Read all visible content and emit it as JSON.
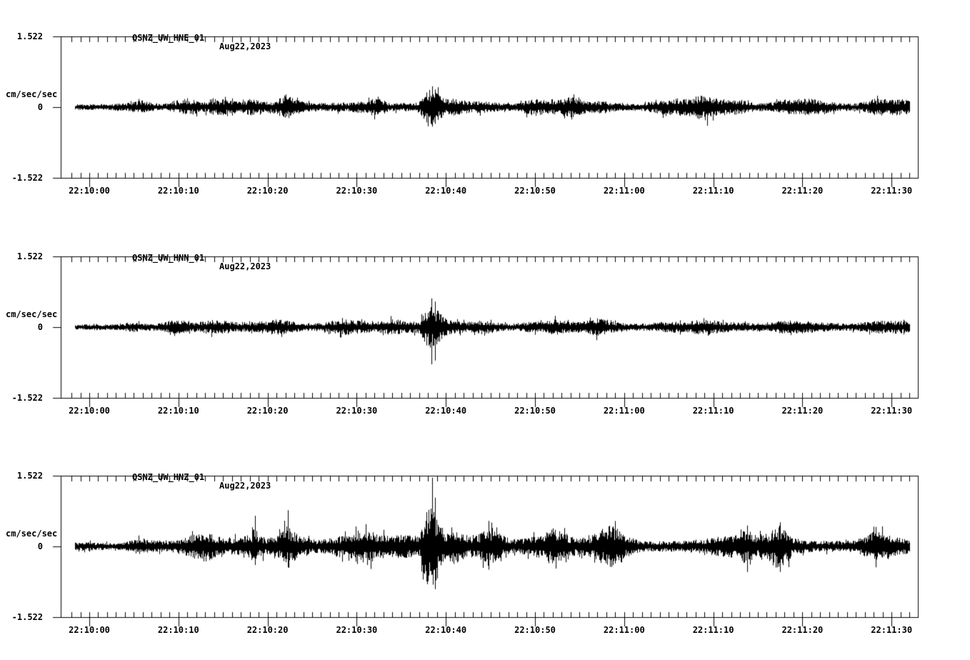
{
  "page": {
    "background_color": "#ffffff",
    "ink_color": "#000000"
  },
  "chart_data": [
    {
      "type": "line",
      "subtype": "seismogram",
      "title_station": "QSNZ_UW_HNE_01",
      "title_date": "Aug22,2023",
      "ylabel": "cm/sec/sec",
      "y_tick_labels": [
        "1.522",
        "0",
        "-1.522"
      ],
      "ylim": [
        -1.522,
        1.522
      ],
      "grid": false,
      "x_start_time": "22:10:00",
      "x_span_seconds": 90,
      "x_minor_tick_seconds": 1,
      "x_major_tick_seconds": 10,
      "x_tick_labels": [
        "22:10:00",
        "22:10:10",
        "22:10:20",
        "22:10:30",
        "22:10:40",
        "22:10:50",
        "22:11:00",
        "22:11:10",
        "22:11:20",
        "22:11:30"
      ],
      "envelope_t_start": -2,
      "envelope_t_step_seconds": 1,
      "envelope_amp": [
        0.06,
        0.06,
        0.06,
        0.06,
        0.06,
        0.08,
        0.08,
        0.12,
        0.15,
        0.09,
        0.08,
        0.09,
        0.12,
        0.18,
        0.15,
        0.12,
        0.18,
        0.18,
        0.15,
        0.12,
        0.18,
        0.15,
        0.12,
        0.15,
        0.28,
        0.18,
        0.11,
        0.09,
        0.09,
        0.09,
        0.11,
        0.09,
        0.12,
        0.15,
        0.2,
        0.12,
        0.09,
        0.09,
        0.09,
        0.12,
        0.42,
        0.31,
        0.18,
        0.18,
        0.15,
        0.12,
        0.14,
        0.11,
        0.09,
        0.08,
        0.08,
        0.15,
        0.2,
        0.15,
        0.18,
        0.18,
        0.23,
        0.18,
        0.12,
        0.15,
        0.12,
        0.09,
        0.08,
        0.08,
        0.08,
        0.12,
        0.15,
        0.18,
        0.2,
        0.18,
        0.23,
        0.31,
        0.23,
        0.18,
        0.15,
        0.15,
        0.12,
        0.09,
        0.09,
        0.12,
        0.18,
        0.15,
        0.18,
        0.18,
        0.15,
        0.12,
        0.09,
        0.08,
        0.08,
        0.12,
        0.18,
        0.18,
        0.18,
        0.18,
        0.15
      ],
      "spikes": [
        {
          "t": 38.5,
          "up": 0.45,
          "down": 0.42
        },
        {
          "t": 38.8,
          "up": 0.38,
          "down": 0.36
        }
      ]
    },
    {
      "type": "line",
      "subtype": "seismogram",
      "title_station": "QSNZ_UW_HNN_01",
      "title_date": "Aug22,2023",
      "ylabel": "cm/sec/sec",
      "y_tick_labels": [
        "1.522",
        "0",
        "-1.522"
      ],
      "ylim": [
        -1.522,
        1.522
      ],
      "grid": false,
      "x_start_time": "22:10:00",
      "x_span_seconds": 90,
      "x_minor_tick_seconds": 1,
      "x_major_tick_seconds": 10,
      "x_tick_labels": [
        "22:10:00",
        "22:10:10",
        "22:10:20",
        "22:10:30",
        "22:10:40",
        "22:10:50",
        "22:11:00",
        "22:11:10",
        "22:11:20",
        "22:11:30"
      ],
      "envelope_t_start": -2,
      "envelope_t_step_seconds": 1,
      "envelope_amp": [
        0.06,
        0.06,
        0.06,
        0.06,
        0.06,
        0.06,
        0.09,
        0.11,
        0.08,
        0.08,
        0.09,
        0.14,
        0.15,
        0.14,
        0.11,
        0.14,
        0.15,
        0.15,
        0.12,
        0.11,
        0.11,
        0.12,
        0.14,
        0.18,
        0.15,
        0.11,
        0.09,
        0.09,
        0.09,
        0.12,
        0.15,
        0.18,
        0.15,
        0.12,
        0.11,
        0.14,
        0.18,
        0.15,
        0.12,
        0.14,
        0.46,
        0.38,
        0.18,
        0.15,
        0.14,
        0.12,
        0.15,
        0.12,
        0.09,
        0.08,
        0.08,
        0.11,
        0.12,
        0.12,
        0.18,
        0.15,
        0.12,
        0.12,
        0.15,
        0.2,
        0.15,
        0.11,
        0.08,
        0.08,
        0.08,
        0.09,
        0.11,
        0.12,
        0.12,
        0.12,
        0.15,
        0.18,
        0.15,
        0.12,
        0.11,
        0.11,
        0.09,
        0.08,
        0.08,
        0.12,
        0.15,
        0.14,
        0.14,
        0.12,
        0.11,
        0.09,
        0.08,
        0.08,
        0.08,
        0.11,
        0.14,
        0.14,
        0.14,
        0.14,
        0.12
      ],
      "spikes": [
        {
          "t": 38.4,
          "up": 0.62,
          "down": 0.8
        },
        {
          "t": 38.8,
          "up": 0.55,
          "down": 0.72
        }
      ]
    },
    {
      "type": "line",
      "subtype": "seismogram",
      "title_station": "QSNZ_UW_HNZ_01",
      "title_date": "Aug22,2023",
      "ylabel": "cm/sec/sec",
      "y_tick_labels": [
        "1.522",
        "0",
        "-1.522"
      ],
      "ylim": [
        -1.522,
        1.522
      ],
      "grid": false,
      "x_start_time": "22:10:00",
      "x_span_seconds": 90,
      "x_minor_tick_seconds": 1,
      "x_major_tick_seconds": 10,
      "x_tick_labels": [
        "22:10:00",
        "22:10:10",
        "22:10:20",
        "22:10:30",
        "22:10:40",
        "22:10:50",
        "22:11:00",
        "22:11:10",
        "22:11:20",
        "22:11:30"
      ],
      "envelope_t_start": -2,
      "envelope_t_step_seconds": 1,
      "envelope_amp": [
        0.09,
        0.09,
        0.09,
        0.08,
        0.08,
        0.08,
        0.09,
        0.15,
        0.18,
        0.14,
        0.12,
        0.12,
        0.15,
        0.22,
        0.28,
        0.34,
        0.25,
        0.18,
        0.18,
        0.22,
        0.31,
        0.25,
        0.18,
        0.22,
        0.43,
        0.31,
        0.22,
        0.15,
        0.15,
        0.18,
        0.22,
        0.25,
        0.34,
        0.38,
        0.31,
        0.25,
        0.23,
        0.28,
        0.25,
        0.22,
        0.92,
        0.54,
        0.31,
        0.34,
        0.28,
        0.23,
        0.31,
        0.38,
        0.28,
        0.18,
        0.15,
        0.18,
        0.23,
        0.28,
        0.38,
        0.31,
        0.22,
        0.18,
        0.22,
        0.31,
        0.46,
        0.43,
        0.28,
        0.15,
        0.12,
        0.11,
        0.11,
        0.12,
        0.12,
        0.12,
        0.15,
        0.15,
        0.2,
        0.22,
        0.25,
        0.37,
        0.34,
        0.23,
        0.28,
        0.49,
        0.43,
        0.18,
        0.15,
        0.12,
        0.12,
        0.12,
        0.12,
        0.12,
        0.14,
        0.23,
        0.34,
        0.31,
        0.22,
        0.18,
        0.18
      ],
      "spikes": [
        {
          "t": 38.5,
          "up": 1.48,
          "down": 0.6
        },
        {
          "t": 38.8,
          "up": 1.05,
          "down": 0.92
        },
        {
          "t": 22.3,
          "up": 0.78,
          "down": 0.45
        },
        {
          "t": 18.6,
          "up": 0.66,
          "down": 0.4
        },
        {
          "t": 44.8,
          "up": 0.55,
          "down": 0.5
        },
        {
          "t": 73.8,
          "up": 0.45,
          "down": 0.55
        },
        {
          "t": 77.5,
          "up": 0.52,
          "down": 0.55
        },
        {
          "t": 88.2,
          "up": 0.42,
          "down": 0.45
        }
      ]
    }
  ]
}
